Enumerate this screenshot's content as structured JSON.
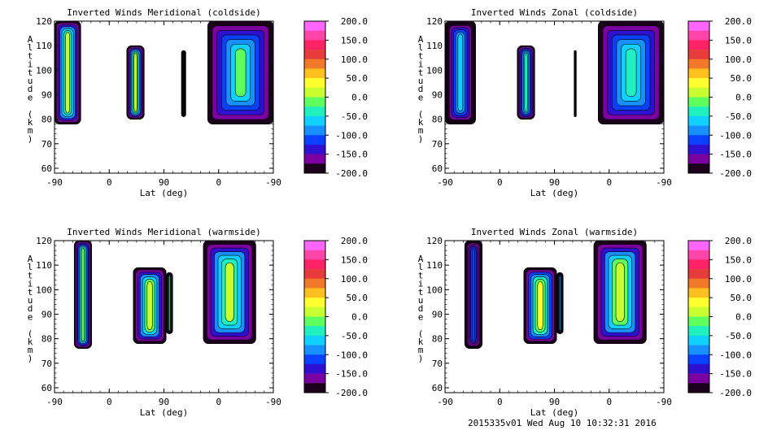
{
  "footer": "2015335v01 Wed Aug 10 10:32:31 2016",
  "chart_data": [
    {
      "type": "contour",
      "title": "Inverted Winds Meridional (coldside)",
      "xlabel": "Lat (deg)",
      "ylabel": "Altitude (km)",
      "x_ticks": [
        "-90",
        "0",
        "90",
        "0",
        "-90"
      ],
      "y_ticks": [
        60,
        70,
        80,
        90,
        100,
        110,
        120
      ],
      "ylim": [
        58,
        120
      ],
      "colorbar": {
        "levels": [
          "200.0",
          "150.0",
          "100.0",
          "50.0",
          "0.0",
          "-50.0",
          "-100.0",
          "-150.0",
          "-200.0"
        ],
        "range": [
          -200,
          200
        ]
      },
      "regions": [
        {
          "x": [
            0.0,
            0.12
          ],
          "y": [
            78,
            120
          ],
          "value": 10
        },
        {
          "x": [
            0.33,
            0.41
          ],
          "y": [
            80,
            110
          ],
          "value": 12
        },
        {
          "x": [
            0.58,
            0.6
          ],
          "y": [
            81,
            108
          ],
          "value": -200
        },
        {
          "x": [
            0.7,
            1.0
          ],
          "y": [
            78,
            120
          ],
          "value": -20
        }
      ]
    },
    {
      "type": "contour",
      "title": "Inverted Winds Zonal (coldside)",
      "xlabel": "Lat (deg)",
      "ylabel": "Altitude (km)",
      "x_ticks": [
        "-90",
        "0",
        "90",
        "0",
        "-90"
      ],
      "y_ticks": [
        60,
        70,
        80,
        90,
        100,
        110,
        120
      ],
      "ylim": [
        58,
        120
      ],
      "colorbar": {
        "levels": [
          "200.0",
          "150.0",
          "100.0",
          "50.0",
          "0.0",
          "-50.0",
          "-100.0",
          "-150.0",
          "-200.0"
        ],
        "range": [
          -200,
          200
        ]
      },
      "regions": [
        {
          "x": [
            0.0,
            0.14
          ],
          "y": [
            78,
            120
          ],
          "value": -60
        },
        {
          "x": [
            0.33,
            0.41
          ],
          "y": [
            80,
            110
          ],
          "value": -40
        },
        {
          "x": [
            0.59,
            0.6
          ],
          "y": [
            81,
            108
          ],
          "value": -200
        },
        {
          "x": [
            0.7,
            1.0
          ],
          "y": [
            78,
            120
          ],
          "value": -30
        }
      ]
    },
    {
      "type": "contour",
      "title": "Inverted Winds Meridional (warmside)",
      "xlabel": "Lat (deg)",
      "ylabel": "Altitude (km)",
      "x_ticks": [
        "-90",
        "0",
        "90",
        "0",
        "-90"
      ],
      "y_ticks": [
        60,
        70,
        80,
        90,
        100,
        110,
        120
      ],
      "ylim": [
        58,
        120
      ],
      "colorbar": {
        "levels": [
          "200.0",
          "150.0",
          "100.0",
          "50.0",
          "0.0",
          "-50.0",
          "-100.0",
          "-150.0",
          "-200.0"
        ],
        "range": [
          -200,
          200
        ]
      },
      "regions": [
        {
          "x": [
            0.09,
            0.17
          ],
          "y": [
            76,
            120
          ],
          "value": -10
        },
        {
          "x": [
            0.36,
            0.51
          ],
          "y": [
            78,
            109
          ],
          "value": 25
        },
        {
          "x": [
            0.51,
            0.54
          ],
          "y": [
            82,
            107
          ],
          "value": 5
        },
        {
          "x": [
            0.68,
            0.92
          ],
          "y": [
            78,
            120
          ],
          "value": 10
        }
      ]
    },
    {
      "type": "contour",
      "title": "Inverted Winds Zonal (warmside)",
      "xlabel": "Lat (deg)",
      "ylabel": "Altitude (km)",
      "x_ticks": [
        "-90",
        "0",
        "90",
        "0",
        "-90"
      ],
      "y_ticks": [
        60,
        70,
        80,
        90,
        100,
        110,
        120
      ],
      "ylim": [
        58,
        120
      ],
      "colorbar": {
        "levels": [
          "200.0",
          "150.0",
          "100.0",
          "50.0",
          "0.0",
          "-50.0",
          "-100.0",
          "-150.0",
          "-200.0"
        ],
        "range": [
          -200,
          200
        ]
      },
      "regions": [
        {
          "x": [
            0.09,
            0.17
          ],
          "y": [
            76,
            120
          ],
          "value": -100
        },
        {
          "x": [
            0.36,
            0.51
          ],
          "y": [
            78,
            109
          ],
          "value": 40
        },
        {
          "x": [
            0.51,
            0.54
          ],
          "y": [
            82,
            107
          ],
          "value": -60
        },
        {
          "x": [
            0.68,
            0.92
          ],
          "y": [
            78,
            120
          ],
          "value": 25
        }
      ]
    }
  ]
}
